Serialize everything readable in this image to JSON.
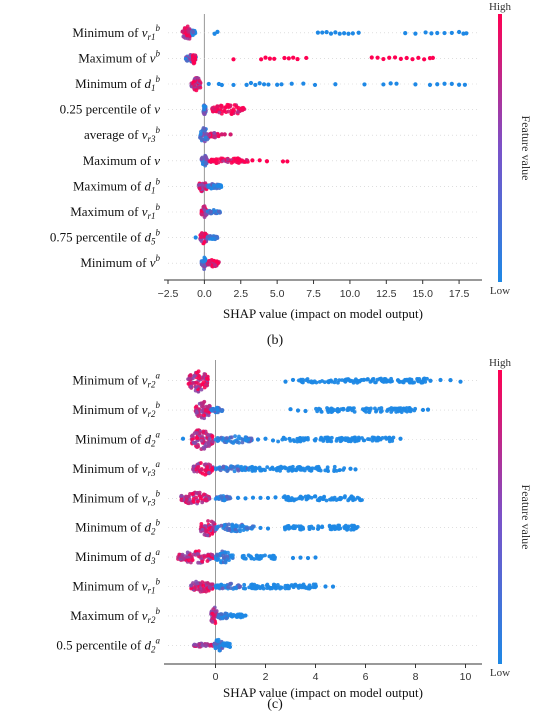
{
  "chart_data": [
    {
      "type": "scatter",
      "subtype": "shap-beeswarm",
      "panel_label": "(b)",
      "xlabel": "SHAP value (impact on model output)",
      "xlim": [
        -2.5,
        18.8
      ],
      "xticks": [
        "−2.5",
        "0.0",
        "2.5",
        "5.0",
        "7.5",
        "10.0",
        "12.5",
        "15.0",
        "17.5"
      ],
      "xtick_values": [
        -2.5,
        0,
        2.5,
        5,
        7.5,
        10,
        12.5,
        15,
        17.5
      ],
      "colorbar": {
        "title": "Feature value",
        "high": "High",
        "low": "Low",
        "low_color": "#1e88e5",
        "high_color": "#ff0052"
      },
      "features": [
        {
          "label": {
            "pre": "Minimum of ",
            "v": "v",
            "sub": "r1",
            "sup": "b"
          },
          "clusters": [
            {
              "x": [
                -1.5,
                -0.9
              ],
              "h": 0.75
            },
            {
              "x": [
                -0.9,
                -0.6
              ],
              "h": 0.25
            }
          ],
          "pos": [
            0.7,
            0.9,
            7.8,
            8.1,
            8.4,
            8.7,
            9.0,
            9.3,
            9.6,
            9.9,
            10.2,
            10.6,
            13.8,
            14.5,
            15.2,
            15.6,
            16.0,
            16.5,
            17.0,
            17.5,
            17.8,
            18.0
          ],
          "pos_color": 0.0
        },
        {
          "label": {
            "pre": "Maximum of ",
            "v": "v",
            "sub": "",
            "sup": "b"
          },
          "clusters": [
            {
              "x": [
                -1.3,
                -0.5
              ],
              "h": 0.35
            },
            {
              "x": [
                -0.8,
                -0.6
              ],
              "h": 0.55
            }
          ],
          "pos": [
            2.0,
            3.9,
            4.2,
            4.5,
            4.8,
            5.5,
            5.8,
            6.1,
            6.4,
            7.0,
            11.5,
            11.9,
            12.3,
            12.7,
            13.1,
            13.5,
            13.9,
            14.3,
            14.7,
            15.1,
            15.5,
            15.7
          ],
          "pos_color": 1.0
        },
        {
          "label": {
            "pre": "Minimum of ",
            "v": "d",
            "sub": "1",
            "sup": "b"
          },
          "clusters": [
            {
              "x": [
                -0.9,
                -0.2
              ],
              "h": 0.6
            }
          ],
          "pos": [
            0.3,
            1.0,
            1.2,
            2.0,
            2.9,
            3.2,
            3.5,
            3.8,
            4.1,
            4.4,
            5.0,
            5.3,
            6.0,
            6.8,
            7.6,
            9.0,
            11.0,
            12.3,
            12.8,
            13.2,
            14.5,
            15.5,
            16.0,
            16.5,
            17.0,
            17.5,
            17.9
          ],
          "pos_color": 0.0
        },
        {
          "label": {
            "pre": "0.25 percentile of ",
            "v": "v",
            "sub": "",
            "sup": ""
          },
          "clusters": [
            {
              "x": [
                -0.1,
                0.1
              ],
              "h": 0.5
            },
            {
              "x": [
                0.5,
                2.8
              ],
              "h": 0.5
            }
          ],
          "pos": [],
          "pos_color": 1.0
        },
        {
          "label": {
            "pre": "average of ",
            "v": "v",
            "sub": "r3",
            "sup": "b"
          },
          "clusters": [
            {
              "x": [
                -0.3,
                0.3
              ],
              "h": 0.7
            },
            {
              "x": [
                0.3,
                1.0
              ],
              "h": 0.25
            }
          ],
          "pos": [
            1.2,
            1.4,
            1.8
          ],
          "pos_color": 0.8
        },
        {
          "label": {
            "pre": "Maximum of ",
            "v": "v",
            "sub": "",
            "sup": ""
          },
          "clusters": [
            {
              "x": [
                -0.2,
                0.2
              ],
              "h": 0.5
            },
            {
              "x": [
                0.3,
                3.0
              ],
              "h": 0.3
            }
          ],
          "pos": [
            3.3,
            3.8,
            4.3,
            5.4,
            5.7
          ],
          "pos_color": 1.0
        },
        {
          "label": {
            "pre": "Maximum of ",
            "v": "d",
            "sub": "1",
            "sup": "b"
          },
          "clusters": [
            {
              "x": [
                -0.4,
                0.2
              ],
              "h": 0.5
            },
            {
              "x": [
                0.2,
                1.2
              ],
              "h": 0.25
            }
          ],
          "pos": [],
          "pos_color": 0.0
        },
        {
          "label": {
            "pre": "Maximum of ",
            "v": "v",
            "sub": "r1",
            "sup": "b"
          },
          "clusters": [
            {
              "x": [
                -0.2,
                0.2
              ],
              "h": 0.55
            },
            {
              "x": [
                0.2,
                1.1
              ],
              "h": 0.2
            }
          ],
          "pos": [],
          "pos_color": 0.0
        },
        {
          "label": {
            "pre": "0.75 percentile of ",
            "v": "d",
            "sub": "5",
            "sup": "b"
          },
          "clusters": [
            {
              "x": [
                -0.3,
                0.2
              ],
              "h": 0.55
            },
            {
              "x": [
                0.2,
                0.9
              ],
              "h": 0.2
            }
          ],
          "pos": [
            -0.6
          ],
          "pos_color": 0.0
        },
        {
          "label": {
            "pre": "Minimum of ",
            "v": "v",
            "sub": "",
            "sup": "b"
          },
          "clusters": [
            {
              "x": [
                -0.2,
                0.15
              ],
              "h": 0.55
            },
            {
              "x": [
                0.2,
                1.0
              ],
              "h": 0.35
            }
          ],
          "pos": [],
          "pos_color": 1.0
        }
      ]
    },
    {
      "type": "scatter",
      "subtype": "shap-beeswarm",
      "panel_label": "(c)",
      "xlabel": "SHAP value (impact on model output)",
      "xlim": [
        -1.9,
        10.5
      ],
      "xticks": [
        "0",
        "2",
        "4",
        "6",
        "8",
        "10"
      ],
      "xtick_values": [
        0,
        2,
        4,
        6,
        8,
        10
      ],
      "colorbar": {
        "title": "Feature value",
        "high": "High",
        "low": "Low",
        "low_color": "#1e88e5",
        "high_color": "#ff0052"
      },
      "features": [
        {
          "label": {
            "pre": "Minimum of ",
            "v": "v",
            "sub": "r2",
            "sup": "a"
          },
          "clusters": [
            {
              "x": [
                -1.1,
                -0.3
              ],
              "h": 0.9
            }
          ],
          "range": [
            3.3,
            8.5
          ],
          "pos": [
            2.8,
            3.1,
            6.7,
            7.0,
            7.3,
            7.8,
            8.6,
            9.0,
            9.4,
            9.8
          ],
          "pos_color": 0.0
        },
        {
          "label": {
            "pre": "Minimum of ",
            "v": "v",
            "sub": "r2",
            "sup": "b"
          },
          "clusters": [
            {
              "x": [
                -0.8,
                -0.2
              ],
              "h": 0.7
            },
            {
              "x": [
                -0.2,
                0.3
              ],
              "h": 0.2
            }
          ],
          "range": [
            4.0,
            8.0
          ],
          "pos": [
            3.0,
            3.3,
            3.6,
            8.3,
            8.5
          ],
          "pos_color": 0.0
        },
        {
          "label": {
            "pre": "Minimum of ",
            "v": "d",
            "sub": "2",
            "sup": "a"
          },
          "clusters": [
            {
              "x": [
                -1.0,
                -0.1
              ],
              "h": 0.85
            },
            {
              "x": [
                0.0,
                1.5
              ],
              "h": 0.3
            }
          ],
          "range": [
            2.5,
            7.2
          ],
          "pos": [
            -1.3,
            1.7,
            2.0,
            2.3,
            7.4
          ],
          "pos_color": 0.0
        },
        {
          "label": {
            "pre": "Minimum of ",
            "v": "v",
            "sub": "r3",
            "sup": "a"
          },
          "clusters": [
            {
              "x": [
                -0.9,
                -0.1
              ],
              "h": 0.5
            },
            {
              "x": [
                0.0,
                1.3
              ],
              "h": 0.25
            }
          ],
          "range": [
            1.3,
            5.2
          ],
          "pos": [
            5.4,
            5.6
          ],
          "pos_color": 0.0
        },
        {
          "label": {
            "pre": "Minimum of ",
            "v": "v",
            "sub": "r3",
            "sup": "b"
          },
          "clusters": [
            {
              "x": [
                -1.4,
                -0.2
              ],
              "h": 0.5
            },
            {
              "x": [
                0.0,
                0.6
              ],
              "h": 0.2
            }
          ],
          "range": [
            2.7,
            5.9
          ],
          "pos": [
            0.9,
            1.2,
            1.5,
            1.8,
            2.1,
            2.4
          ],
          "pos_color": 0.0
        },
        {
          "label": {
            "pre": "Minimum of ",
            "v": "d",
            "sub": "2",
            "sup": "b"
          },
          "clusters": [
            {
              "x": [
                -0.6,
                0.0
              ],
              "h": 0.7
            },
            {
              "x": [
                0.0,
                1.6
              ],
              "h": 0.3
            }
          ],
          "range": [
            2.7,
            5.8
          ],
          "pos": [
            1.8,
            2.1
          ],
          "pos_color": 0.0
        },
        {
          "label": {
            "pre": "Minimum of ",
            "v": "d",
            "sub": "3",
            "sup": "a"
          },
          "clusters": [
            {
              "x": [
                -1.5,
                -0.1
              ],
              "h": 0.5
            },
            {
              "x": [
                0.0,
                0.7
              ],
              "h": 0.5
            }
          ],
          "range": [
            1.0,
            2.4
          ],
          "pos": [
            3.1,
            3.4,
            3.7,
            4.0
          ],
          "pos_color": 0.0
        },
        {
          "label": {
            "pre": "Minimum of ",
            "v": "v",
            "sub": "r1",
            "sup": "b"
          },
          "clusters": [
            {
              "x": [
                -1.0,
                -0.1
              ],
              "h": 0.5
            },
            {
              "x": [
                0.0,
                1.0
              ],
              "h": 0.25
            }
          ],
          "range": [
            1.1,
            4.2
          ],
          "pos": [
            4.4,
            4.7
          ],
          "pos_color": 0.0
        },
        {
          "label": {
            "pre": "Maximum of ",
            "v": "v",
            "sub": "r2",
            "sup": "b"
          },
          "clusters": [
            {
              "x": [
                -0.2,
                0.1
              ],
              "h": 0.7
            },
            {
              "x": [
                0.1,
                0.5
              ],
              "h": 0.3
            }
          ],
          "range": [
            0.6,
            1.1
          ],
          "pos": [
            1.2
          ],
          "pos_color": 0.0
        },
        {
          "label": {
            "pre": "0.5 percentile of ",
            "v": "d",
            "sub": "2",
            "sup": "a"
          },
          "clusters": [
            {
              "x": [
                -0.9,
                -0.1
              ],
              "h": 0.15
            },
            {
              "x": [
                -0.05,
                0.3
              ],
              "h": 0.5
            }
          ],
          "range": [
            0.3,
            0.6
          ],
          "pos": [],
          "pos_color": 0.0
        }
      ]
    }
  ]
}
